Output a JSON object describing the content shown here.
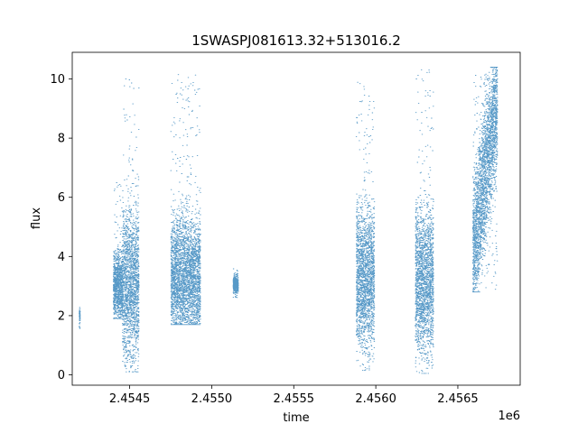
{
  "chart_data": {
    "type": "scatter",
    "title": "1SWASPJ081613.32+513016.2",
    "xlabel": "time",
    "ylabel": "flux",
    "x_offset_label": "1e6",
    "xlim": [
      2454150,
      2456880
    ],
    "ylim": [
      -0.35,
      10.9
    ],
    "x_ticks": [
      2454500,
      2455000,
      2455500,
      2456000,
      2456500
    ],
    "x_tick_labels": [
      "2.4545",
      "2.4550",
      "2.4555",
      "2.4560",
      "2.4565"
    ],
    "y_ticks": [
      0,
      2,
      4,
      6,
      8,
      10
    ],
    "y_tick_labels": [
      "0",
      "2",
      "4",
      "6",
      "8",
      "10"
    ],
    "grid": false,
    "marker_color": "#1f77b4",
    "clusters": [
      {
        "x_start": 2454192,
        "x_end": 2454196,
        "y_low": 1.5,
        "y_high": 2.35,
        "y_center": 2.0
      },
      {
        "x_start": 2454400,
        "x_end": 2454455,
        "y_low": 1.9,
        "y_high": 6.5,
        "y_center": 3.0
      },
      {
        "x_start": 2454455,
        "x_end": 2454555,
        "y_low": 0.1,
        "y_high": 10.4,
        "y_center": 3.1
      },
      {
        "x_start": 2454750,
        "x_end": 2454930,
        "y_low": 1.7,
        "y_high": 10.2,
        "y_center": 3.3
      },
      {
        "x_start": 2455130,
        "x_end": 2455160,
        "y_low": 2.6,
        "y_high": 3.7,
        "y_center": 3.05
      },
      {
        "x_start": 2455880,
        "x_end": 2455990,
        "y_low": 0.15,
        "y_high": 10.1,
        "y_center": 3.3
      },
      {
        "x_start": 2456240,
        "x_end": 2456350,
        "y_low": 0.05,
        "y_high": 10.4,
        "y_center": 3.2
      },
      {
        "x_start": 2456590,
        "x_end": 2456740,
        "y_low": 2.8,
        "y_high": 10.4,
        "y_center": 6.0
      }
    ]
  }
}
